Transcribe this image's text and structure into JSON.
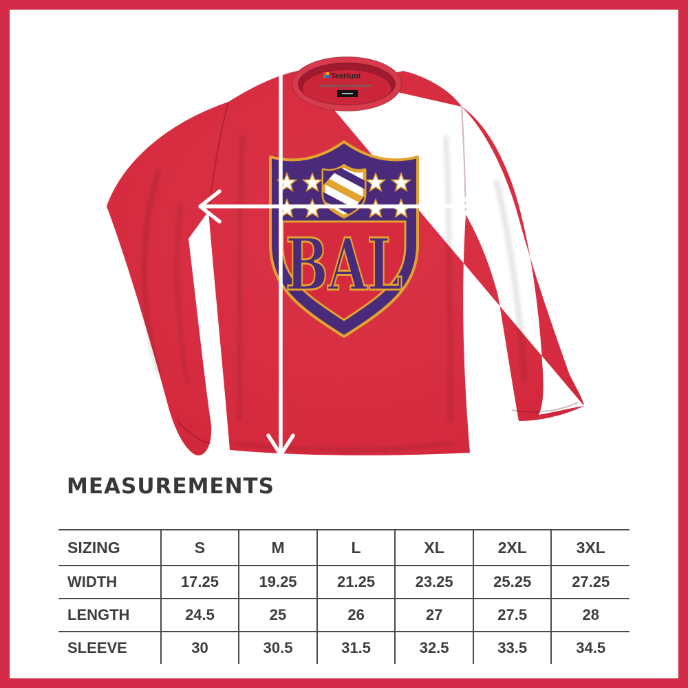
{
  "title": "MEASUREMENTS",
  "frame_color": "#d22c49",
  "arrow_color": "#ffffff",
  "product": {
    "brand": "TeeHunt",
    "shirt_color": "#d62b3f",
    "logo": {
      "text": "BAL",
      "shield_color": "#4a2a7a",
      "trim_color": "#e2a42f",
      "star_count": 8
    }
  },
  "table": {
    "header": [
      "SIZING",
      "S",
      "M",
      "L",
      "XL",
      "2XL",
      "3XL"
    ],
    "rows": [
      {
        "label": "WIDTH",
        "values": [
          "17.25",
          "19.25",
          "21.25",
          "23.25",
          "25.25",
          "27.25"
        ]
      },
      {
        "label": "LENGTH",
        "values": [
          "24.5",
          "25",
          "26",
          "27",
          "27.5",
          "28"
        ]
      },
      {
        "label": "SLEEVE",
        "values": [
          "30",
          "30.5",
          "31.5",
          "32.5",
          "33.5",
          "34.5"
        ]
      }
    ]
  }
}
